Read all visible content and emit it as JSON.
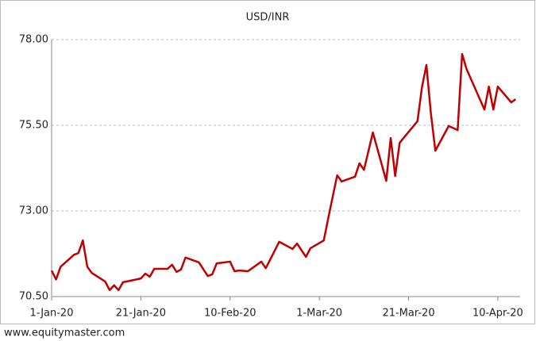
{
  "chart_data": {
    "type": "line",
    "title": "USD/INR",
    "source": "www.equitymaster.com",
    "x": [
      "2020-01-01",
      "2020-01-02",
      "2020-01-03",
      "2020-01-06",
      "2020-01-07",
      "2020-01-08",
      "2020-01-09",
      "2020-01-10",
      "2020-01-13",
      "2020-01-14",
      "2020-01-15",
      "2020-01-16",
      "2020-01-17",
      "2020-01-20",
      "2020-01-21",
      "2020-01-22",
      "2020-01-23",
      "2020-01-24",
      "2020-01-27",
      "2020-01-28",
      "2020-01-29",
      "2020-01-30",
      "2020-01-31",
      "2020-02-03",
      "2020-02-05",
      "2020-02-06",
      "2020-02-07",
      "2020-02-10",
      "2020-02-11",
      "2020-02-12",
      "2020-02-14",
      "2020-02-17",
      "2020-02-18",
      "2020-02-21",
      "2020-02-24",
      "2020-02-25",
      "2020-02-27",
      "2020-02-28",
      "2020-03-02",
      "2020-03-03",
      "2020-03-04",
      "2020-03-05",
      "2020-03-06",
      "2020-03-09",
      "2020-03-10",
      "2020-03-11",
      "2020-03-13",
      "2020-03-16",
      "2020-03-17",
      "2020-03-18",
      "2020-03-19",
      "2020-03-23",
      "2020-03-24",
      "2020-03-25",
      "2020-03-26",
      "2020-03-27",
      "2020-03-30",
      "2020-04-01",
      "2020-04-02",
      "2020-04-03",
      "2020-04-07",
      "2020-04-08",
      "2020-04-09",
      "2020-04-10",
      "2020-04-13",
      "2020-04-14"
    ],
    "series": [
      {
        "name": "USD/INR",
        "color": "#c00000",
        "values": [
          71.26,
          71.0,
          71.37,
          71.72,
          71.77,
          72.14,
          71.37,
          71.19,
          70.94,
          70.69,
          70.83,
          70.69,
          70.92,
          71.0,
          71.03,
          71.17,
          71.08,
          71.31,
          71.31,
          71.43,
          71.22,
          71.29,
          71.64,
          71.5,
          71.1,
          71.15,
          71.47,
          71.52,
          71.24,
          71.26,
          71.24,
          71.52,
          71.33,
          72.1,
          71.89,
          72.05,
          71.66,
          71.91,
          72.14,
          72.79,
          73.42,
          74.04,
          73.86,
          74.0,
          74.39,
          74.2,
          75.29,
          73.88,
          75.13,
          74.02,
          74.99,
          75.62,
          76.61,
          77.26,
          75.85,
          74.76,
          75.48,
          75.36,
          77.58,
          77.14,
          75.96,
          76.63,
          75.96,
          76.63,
          76.17,
          76.26
        ]
      }
    ],
    "xlim": [
      "2020-01-01",
      "2020-04-15"
    ],
    "xticks": [
      {
        "value": "2020-01-01",
        "label": "1-Jan-20"
      },
      {
        "value": "2020-01-21",
        "label": "21-Jan-20"
      },
      {
        "value": "2020-02-10",
        "label": "10-Feb-20"
      },
      {
        "value": "2020-03-01",
        "label": "1-Mar-20"
      },
      {
        "value": "2020-03-21",
        "label": "21-Mar-20"
      },
      {
        "value": "2020-04-10",
        "label": "10-Apr-20"
      }
    ],
    "ylim": [
      70.5,
      78
    ],
    "yticks": [
      {
        "value": 70.5,
        "label": "70.50"
      },
      {
        "value": 73,
        "label": "73.00"
      },
      {
        "value": 75.5,
        "label": "75.50"
      },
      {
        "value": 78,
        "label": "78.00"
      }
    ],
    "grid": true
  }
}
